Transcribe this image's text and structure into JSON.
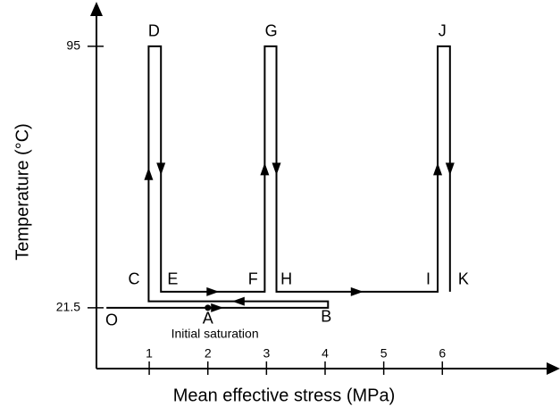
{
  "chart_data": {
    "type": "line",
    "xlabel": "Mean effective stress (MPa)",
    "ylabel": "Temperature (°C)",
    "xlim": [
      0.1,
      7.9
    ],
    "ylim": [
      4.4,
      105.5
    ],
    "xticks": [
      1,
      2,
      3,
      4,
      5,
      6
    ],
    "yticks": [
      21.5,
      95
    ],
    "series": [
      {
        "color": "#000000",
        "x": [
          0.27,
          4.05,
          4.05,
          0.99,
          0.99,
          1.2,
          1.2,
          2.97,
          2.97,
          3.17,
          3.17,
          5.92,
          5.92,
          6.13,
          6.13
        ],
        "values": [
          21.5,
          21.5,
          23.3,
          23.3,
          95,
          95,
          26,
          26,
          95,
          95,
          26,
          26,
          95,
          95,
          26
        ]
      }
    ],
    "marked_point": {
      "x": 2,
      "y": 21.5
    },
    "annotations": [
      {
        "text": "O",
        "x": 0.36,
        "y": 17.7
      },
      {
        "text": "A",
        "x": 2,
        "y": 18.2
      },
      {
        "text": "B",
        "x": 4.02,
        "y": 18.7
      },
      {
        "text": "Initial saturation",
        "x": 2.12,
        "y": 14
      },
      {
        "text": "C",
        "x": 0.74,
        "y": 29.3
      },
      {
        "text": "D",
        "x": 1.08,
        "y": 99
      },
      {
        "text": "E",
        "x": 1.4,
        "y": 29.3
      },
      {
        "text": "F",
        "x": 2.77,
        "y": 29.3
      },
      {
        "text": "G",
        "x": 3.08,
        "y": 99
      },
      {
        "text": "H",
        "x": 3.34,
        "y": 29.3
      },
      {
        "text": "I",
        "x": 5.76,
        "y": 29.3
      },
      {
        "text": "J",
        "x": 6.0,
        "y": 99
      },
      {
        "text": "K",
        "x": 6.36,
        "y": 29.3
      }
    ]
  }
}
